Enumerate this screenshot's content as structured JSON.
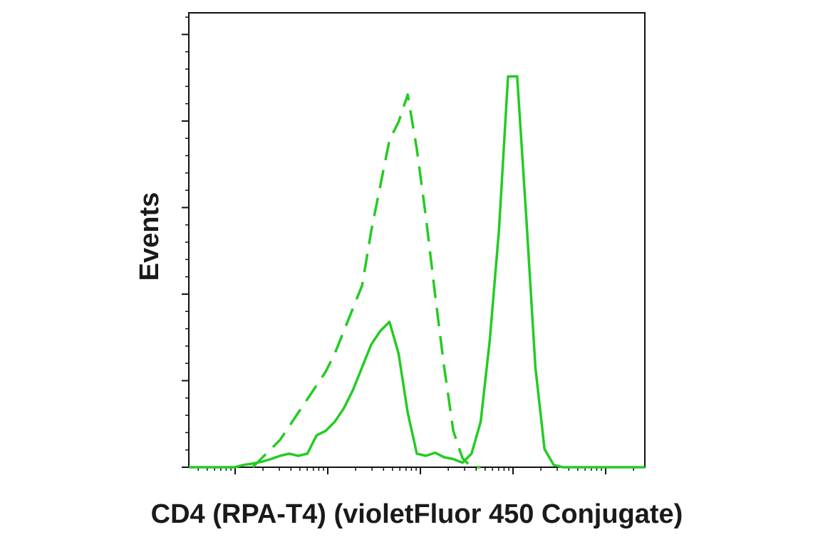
{
  "chart_data": {
    "type": "line",
    "title": "",
    "xlabel": "CD4 (RPA-T4) (violetFluor 450 Conjugate)",
    "ylabel": "Events",
    "x_scale": "log",
    "xlim": [
      0,
      100
    ],
    "ylim": [
      0,
      100
    ],
    "grid": false,
    "legend": "none",
    "series": [
      {
        "style": "dashed",
        "color": "#22cc22",
        "x": [
          14,
          16,
          18,
          20,
          22,
          24,
          26,
          28,
          30,
          32,
          34,
          36,
          38,
          40,
          42,
          44,
          46,
          48,
          50,
          52,
          54,
          56,
          58,
          60,
          62,
          64
        ],
        "y": [
          0,
          2,
          4,
          6,
          9,
          12,
          15,
          18,
          21,
          25,
          30,
          35,
          40,
          52,
          62,
          72,
          76,
          82,
          70,
          55,
          38,
          22,
          8,
          2,
          0,
          0
        ]
      },
      {
        "style": "solid",
        "color": "#22cc22",
        "x": [
          0,
          10,
          12,
          14,
          16,
          18,
          20,
          22,
          24,
          26,
          28,
          30,
          32,
          34,
          36,
          38,
          40,
          42,
          44,
          46,
          48,
          50,
          52,
          54,
          56,
          58,
          60,
          62,
          64,
          66,
          68,
          70,
          72,
          74,
          76,
          78,
          80,
          82,
          84,
          86,
          88,
          90,
          100
        ],
        "y": [
          0,
          0,
          0.5,
          0.8,
          1.2,
          1.8,
          2.5,
          3,
          2.5,
          3,
          7,
          8,
          10,
          13,
          17,
          22,
          27,
          30,
          32,
          25,
          12,
          3,
          2.5,
          3.2,
          2.2,
          1.8,
          1,
          3,
          10,
          28,
          52,
          86,
          86,
          55,
          22,
          4,
          0.5,
          0,
          0,
          0,
          0,
          0,
          0
        ]
      }
    ]
  }
}
